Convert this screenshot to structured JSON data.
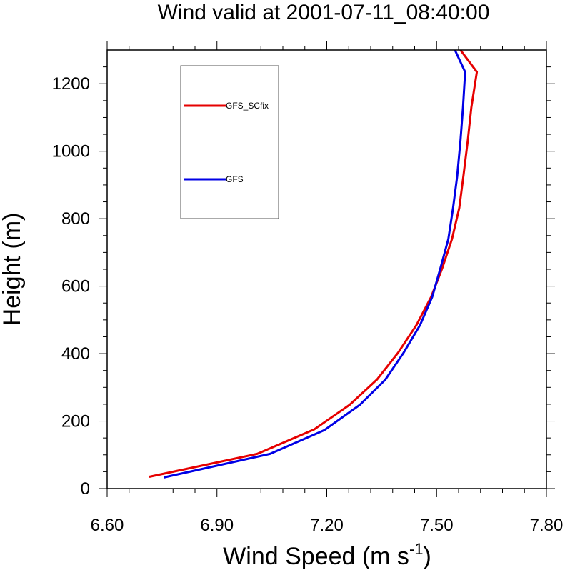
{
  "chart_data": {
    "type": "line",
    "title": "Wind valid at 2001-07-11_08:40:00",
    "xlabel": "Wind Speed (m s",
    "xlabel_superscript": "-1",
    "xlabel_suffix": ")",
    "ylabel": "Height (m)",
    "xlim": [
      6.6,
      7.8
    ],
    "ylim": [
      0,
      1300
    ],
    "x_ticks": [
      6.6,
      6.9,
      7.2,
      7.5,
      7.8
    ],
    "x_tick_labels": [
      "6.60",
      "6.90",
      "7.20",
      "7.50",
      "7.80"
    ],
    "y_ticks": [
      0,
      200,
      400,
      600,
      800,
      1000,
      1200
    ],
    "y_tick_labels": [
      "0",
      "200",
      "400",
      "600",
      "800",
      "1000",
      "1200"
    ],
    "grid": false,
    "legend_position": "top-left",
    "series": [
      {
        "name": "GFS_SCfix",
        "color": "#e60000",
        "points": [
          {
            "x": 6.715,
            "y": 35
          },
          {
            "x": 7.01,
            "y": 103
          },
          {
            "x": 7.165,
            "y": 175
          },
          {
            "x": 7.262,
            "y": 248
          },
          {
            "x": 7.337,
            "y": 323
          },
          {
            "x": 7.395,
            "y": 403
          },
          {
            "x": 7.445,
            "y": 485
          },
          {
            "x": 7.485,
            "y": 568
          },
          {
            "x": 7.515,
            "y": 652
          },
          {
            "x": 7.542,
            "y": 740
          },
          {
            "x": 7.562,
            "y": 832
          },
          {
            "x": 7.573,
            "y": 925
          },
          {
            "x": 7.585,
            "y": 1030
          },
          {
            "x": 7.595,
            "y": 1130
          },
          {
            "x": 7.61,
            "y": 1235
          },
          {
            "x": 7.565,
            "y": 1300
          }
        ]
      },
      {
        "name": "GFS",
        "color": "#0000e6",
        "points": [
          {
            "x": 6.755,
            "y": 33
          },
          {
            "x": 7.045,
            "y": 103
          },
          {
            "x": 7.193,
            "y": 173
          },
          {
            "x": 7.29,
            "y": 248
          },
          {
            "x": 7.36,
            "y": 323
          },
          {
            "x": 7.41,
            "y": 403
          },
          {
            "x": 7.455,
            "y": 485
          },
          {
            "x": 7.488,
            "y": 568
          },
          {
            "x": 7.51,
            "y": 652
          },
          {
            "x": 7.532,
            "y": 740
          },
          {
            "x": 7.545,
            "y": 832
          },
          {
            "x": 7.556,
            "y": 925
          },
          {
            "x": 7.565,
            "y": 1030
          },
          {
            "x": 7.572,
            "y": 1130
          },
          {
            "x": 7.578,
            "y": 1235
          },
          {
            "x": 7.55,
            "y": 1300
          }
        ]
      }
    ]
  }
}
